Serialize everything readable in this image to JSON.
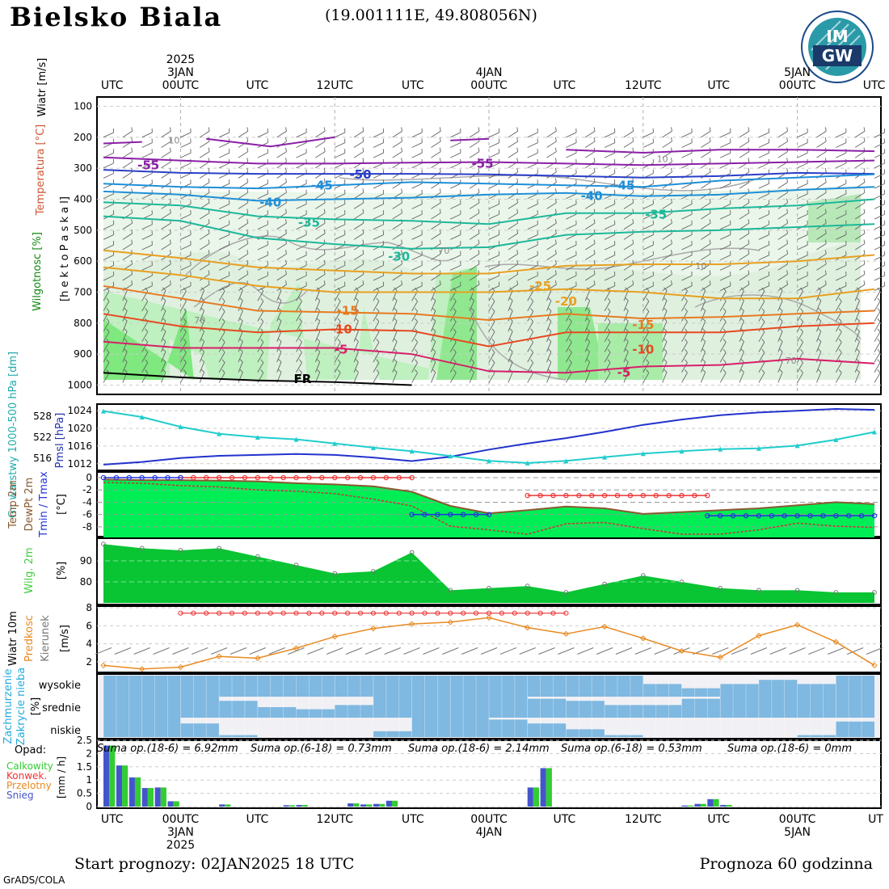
{
  "header": {
    "station": "Bielsko Biala",
    "coords": "(19.001111E, 49.808056N)"
  },
  "footer": {
    "start": "Start prognozy: 02JAN2025 18 UTC",
    "horizon": "Prognoza 60 godzinna",
    "engine": "GrADS/COLA"
  },
  "logo": {
    "text_top": "IM",
    "text_bottom": "GW",
    "name": "imgw-logo"
  },
  "colors": {
    "frame": "#000000",
    "grid": "#999999",
    "pmsl": "#2233cc",
    "gpt": "#22cccc",
    "humidity_fill": "#00ee55",
    "humidity_dark": "#119911",
    "temp_line": "#8a5a30",
    "dew_line": "#cc3333",
    "tmax": "#ee3333",
    "tmin": "#2233dd",
    "wind_speed": "#e88a22",
    "cloud_sky": "#7fb8e0",
    "cloud_grey": "#e0e0e0",
    "precip_total": "#33cc33",
    "precip_conv": "#ee3333",
    "precip_snow": "#4455cc"
  },
  "chart_data": {
    "type": "meteogram",
    "time_axis": {
      "top_labels": [
        "UTC",
        "00UTC",
        "UTC",
        "12UTC",
        "UTC",
        "00UTC",
        "UTC",
        "12UTC",
        "UTC",
        "00UTC",
        "UTC"
      ],
      "top_dates": [
        {
          "day": "3JAN",
          "year": "2025"
        },
        {
          "day": "4JAN",
          "year": ""
        },
        {
          "day": "5JAN",
          "year": ""
        }
      ],
      "bottom_labels": [
        "UTC",
        "00UTC",
        "UTC",
        "12UTC",
        "UTC",
        "00UTC",
        "UTC",
        "12UTC",
        "UTC",
        "00UTC",
        "UT"
      ],
      "bottom_dates": [
        {
          "day": "3JAN",
          "year": "2025"
        },
        {
          "day": "4JAN",
          "year": ""
        },
        {
          "day": "5JAN",
          "year": ""
        }
      ],
      "hours": [
        0,
        3,
        6,
        9,
        12,
        15,
        18,
        21,
        24,
        27,
        30,
        33,
        36,
        39,
        42,
        45,
        48,
        51,
        54,
        57,
        60
      ]
    },
    "panels": [
      {
        "id": "upper-air",
        "ylabel_wind": "Wiatr [m/s]",
        "ylabel_temp": "Temperatura [°C]",
        "ylabel_hum": "Wilgotnosc [%]",
        "ylabel_pres": "[h e k t o P a s k a l]",
        "yticks": [
          100,
          200,
          300,
          400,
          500,
          600,
          700,
          800,
          900,
          1000
        ],
        "isotherm_labels": [
          {
            "text": "-55",
            "hour": 3.5,
            "p": 290,
            "color": "#8a1fa8"
          },
          {
            "text": "-55",
            "hour": 29.5,
            "p": 285,
            "color": "#8a1fa8"
          },
          {
            "text": "-50",
            "hour": 20,
            "p": 320,
            "color": "#2a3fc8"
          },
          {
            "text": "-45",
            "hour": 17,
            "p": 355,
            "color": "#1e8fd8"
          },
          {
            "text": "-45",
            "hour": 40.5,
            "p": 355,
            "color": "#1e8fd8"
          },
          {
            "text": "-40",
            "hour": 13,
            "p": 410,
            "color": "#1e8fd8"
          },
          {
            "text": "-40",
            "hour": 38,
            "p": 390,
            "color": "#1e8fd8"
          },
          {
            "text": "-35",
            "hour": 16,
            "p": 475,
            "color": "#1db89a"
          },
          {
            "text": "-35",
            "hour": 43,
            "p": 450,
            "color": "#1db89a"
          },
          {
            "text": "-30",
            "hour": 23,
            "p": 585,
            "color": "#1db89a"
          },
          {
            "text": "-25",
            "hour": 34,
            "p": 680,
            "color": "#e8a020"
          },
          {
            "text": "-20",
            "hour": 36,
            "p": 730,
            "color": "#e8a020"
          },
          {
            "text": "-15",
            "hour": 19,
            "p": 760,
            "color": "#e87a20"
          },
          {
            "text": "-15",
            "hour": 42,
            "p": 805,
            "color": "#e87a20"
          },
          {
            "text": "-10",
            "hour": 18.5,
            "p": 820,
            "color": "#e84820"
          },
          {
            "text": "-10",
            "hour": 42,
            "p": 885,
            "color": "#e84820"
          },
          {
            "text": "-5",
            "hour": 18.5,
            "p": 885,
            "color": "#d81f6a"
          },
          {
            "text": "-5",
            "hour": 40.5,
            "p": 960,
            "color": "#d81f6a"
          },
          {
            "text": "FR",
            "hour": 15.5,
            "p": 980,
            "color": "#000000"
          }
        ],
        "humidity_labels": [
          {
            "text": "70",
            "hour": 26.5,
            "p": 565
          },
          {
            "text": "70",
            "hour": 7.5,
            "p": 790
          },
          {
            "text": "10",
            "hour": 46.5,
            "p": 615
          },
          {
            "text": "70",
            "hour": 53.5,
            "p": 920
          },
          {
            "text": "10",
            "hour": 5.5,
            "p": 210
          },
          {
            "text": "10",
            "hour": 43.5,
            "p": 270
          }
        ]
      },
      {
        "id": "pressure",
        "ylabel_gpt": "Gr. warstwy 1000-500 hPa [dm]",
        "ylabel_pmsl": "Pmsl [hPa]",
        "yticks_left": [
          516,
          522,
          528
        ],
        "yticks_right": [
          1012,
          1016,
          1020,
          1024
        ],
        "pmsl": [
          1011.8,
          1012.4,
          1013.3,
          1013.8,
          1014.0,
          1014.2,
          1014.0,
          1013.4,
          1012.6,
          1013.6,
          1015.2,
          1016.6,
          1017.8,
          1019.2,
          1020.8,
          1022.0,
          1023.0,
          1023.6,
          1024.0,
          1024.4,
          1024.2
        ],
        "gpt": [
          529.5,
          527.8,
          525.0,
          523.0,
          522.0,
          521.4,
          520.2,
          519.0,
          518.0,
          516.6,
          515.2,
          514.6,
          515.2,
          516.3,
          517.3,
          518.0,
          518.6,
          518.8,
          519.6,
          521.3,
          523.5
        ]
      },
      {
        "id": "temperature",
        "ylabel_temp": "Temp 2m",
        "ylabel_dew": "DewPt 2m",
        "ylabel_tmin": "Tmin / Tmax",
        "ylabel_unit": "[°C]",
        "yticks": [
          0,
          -2,
          -4,
          -6,
          -8
        ],
        "temp": [
          -0.3,
          -0.4,
          -0.4,
          -0.5,
          -0.6,
          -0.9,
          -1.1,
          -1.4,
          -2.3,
          -4.6,
          -5.8,
          -5.3,
          -4.7,
          -5.0,
          -5.9,
          -5.6,
          -5.3,
          -5.0,
          -4.5,
          -4.0,
          -4.3
        ],
        "dew": [
          -0.8,
          -0.9,
          -1.3,
          -1.5,
          -2.0,
          -2.2,
          -2.6,
          -3.5,
          -4.6,
          -7.9,
          -8.5,
          -9.2,
          -7.5,
          -7.3,
          -8.3,
          -9.2,
          -9.2,
          -8.5,
          -7.4,
          -7.9,
          -8.1
        ],
        "tmax": {
          "label": "Tmax",
          "segments": [
            [
              6,
              0
            ],
            [
              24,
              0
            ],
            [
              33,
              -2.9
            ],
            [
              47,
              -2.9
            ]
          ]
        },
        "tmin": {
          "label": "Tmin",
          "segments": [
            [
              0,
              0
            ],
            [
              6,
              0
            ],
            [
              24,
              -6.0
            ],
            [
              30,
              -6.0
            ],
            [
              47,
              -6.2
            ],
            [
              60,
              -6.2
            ]
          ]
        }
      },
      {
        "id": "humidity",
        "ylabel": "Wilg. 2m",
        "ylabel_unit": "[%]",
        "yticks": [
          80,
          90
        ],
        "values": [
          98,
          96,
          95,
          96,
          92,
          88,
          84,
          85,
          94,
          76,
          77,
          78,
          75,
          79,
          83,
          80,
          77,
          76,
          76,
          75,
          75
        ]
      },
      {
        "id": "wind",
        "ylabel_wind": "Wiatr 10m",
        "ylabel_speed": "Predkosc",
        "ylabel_dir": "Kierunek",
        "ylabel_unit": "[m/s]",
        "yticks": [
          2,
          4,
          6,
          8
        ],
        "speed": [
          1.6,
          1.2,
          1.4,
          2.6,
          2.4,
          3.5,
          4.8,
          5.7,
          6.2,
          6.4,
          6.9,
          5.8,
          5.1,
          5.9,
          4.6,
          3.2,
          2.5,
          4.9,
          6.1,
          4.2,
          1.6
        ],
        "gust_line": {
          "from": 6,
          "to": 36,
          "value": 7.4
        }
      },
      {
        "id": "clouds",
        "ylabel_cloud": "Zachmurzenie",
        "ylabel_cloud2": "Zakrycie nieba",
        "ylabel_unit": "[%]",
        "levels": [
          "wysokie",
          "srednie",
          "niskie"
        ],
        "high": [
          100,
          100,
          100,
          100,
          100,
          100,
          100,
          100,
          100,
          100,
          100,
          100,
          100,
          100,
          60,
          40,
          60,
          80,
          60,
          100,
          100
        ],
        "mid": [
          100,
          100,
          100,
          80,
          50,
          40,
          60,
          100,
          100,
          100,
          100,
          90,
          80,
          60,
          60,
          90,
          100,
          100,
          100,
          100,
          50
        ],
        "low": [
          100,
          100,
          70,
          10,
          0,
          0,
          0,
          30,
          100,
          100,
          90,
          70,
          40,
          10,
          0,
          0,
          0,
          0,
          10,
          80,
          60
        ]
      },
      {
        "id": "precip",
        "title": "Opad:",
        "legend": [
          "Calkowity",
          "Konwek.",
          "Przelotny",
          "Snieg"
        ],
        "ylabel_unit": "[mm / h]",
        "yticks": [
          0,
          0.5,
          1,
          1.5,
          2,
          2.5
        ],
        "sums": [
          "Suma op.(18-6) = 6.92mm",
          "Suma op.(6-18) = 0.73mm",
          "Suma op.(18-6) = 2.14mm",
          "Suma op.(6-18) = 0.53mm",
          "Suma op.(18-6) = 0mm"
        ],
        "hourly": [
          2.3,
          1.55,
          1.1,
          0.7,
          0.72,
          0.2,
          0,
          0,
          0,
          0.08,
          0,
          0,
          0,
          0,
          0.05,
          0.06,
          0,
          0,
          0,
          0.12,
          0.08,
          0.1,
          0.22,
          0,
          0,
          0,
          0,
          0,
          0,
          0,
          0,
          0,
          0,
          0.72,
          1.45,
          0,
          0,
          0,
          0,
          0,
          0,
          0,
          0,
          0,
          0,
          0.04,
          0.1,
          0.28,
          0.06,
          0,
          0,
          0,
          0,
          0,
          0,
          0,
          0,
          0,
          0,
          0
        ]
      }
    ]
  }
}
